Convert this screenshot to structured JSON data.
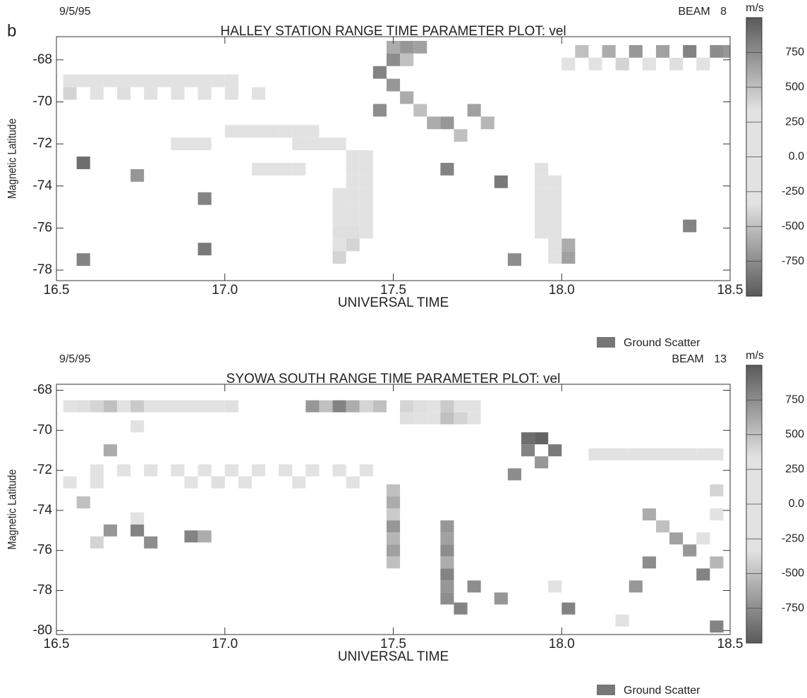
{
  "chart_data": [
    {
      "type": "heatmap",
      "panel_label": "b",
      "date": "9/5/95",
      "beam": "BEAM 8",
      "title": "HALLEY STATION RANGE TIME PARAMETER PLOT: vel",
      "xlabel": "UNIVERSAL TIME",
      "ylabel": "Magnetic Latitude",
      "colorbar_label": "m/s",
      "xlim": [
        16.5,
        18.5
      ],
      "xticks": [
        16.5,
        {
          "value": 17,
          "label": "17.0"
        },
        17.5,
        {
          "value": 18,
          "label": "18.0"
        },
        18.5
      ],
      "ylim": [
        -78.5,
        -66.9
      ],
      "yticks": [
        -78,
        -76,
        -74,
        -72,
        -70,
        -68
      ],
      "clim": [
        -1000,
        1000
      ],
      "cticks": [
        -750,
        -500,
        -250,
        {
          "value": 0,
          "label": "0.0"
        },
        250,
        500,
        750
      ],
      "colorscale": [
        "#5a5a5a",
        "#e2e2e2",
        "#e2e2e2",
        "#5a5a5a"
      ],
      "cell_width": 0.04,
      "cell_height": 0.6,
      "legend": {
        "label": "Ground Scatter",
        "color": "#777777"
      },
      "cells": {
        "x": [
          16.52,
          16.56,
          16.6,
          16.64,
          16.68,
          16.72,
          16.76,
          16.8,
          16.84,
          16.88,
          16.92,
          16.96,
          17.0,
          16.52,
          16.6,
          16.68,
          16.76,
          16.84,
          16.92,
          17.0,
          17.08,
          17.0,
          17.04,
          17.08,
          17.12,
          17.16,
          17.2,
          17.24,
          16.84,
          16.88,
          16.92,
          17.2,
          17.24,
          17.28,
          17.32,
          17.08,
          17.12,
          17.16,
          17.2,
          17.36,
          17.36,
          17.36,
          17.36,
          17.36,
          17.36,
          17.36,
          17.36,
          17.4,
          17.4,
          17.4,
          17.4,
          17.4,
          17.4,
          17.4,
          17.32,
          17.32,
          17.32,
          17.32,
          17.32,
          17.32,
          17.48,
          17.52,
          17.56,
          17.48,
          17.52,
          17.44,
          17.48,
          17.52,
          17.44,
          17.56,
          17.6,
          17.64,
          17.68,
          17.72,
          17.76,
          17.92,
          17.92,
          17.92,
          17.92,
          17.92,
          17.92,
          17.96,
          17.96,
          17.96,
          17.96,
          17.96,
          17.96,
          17.96,
          18.0,
          18.0,
          18.04,
          18.12,
          18.2,
          18.28,
          18.36,
          18.44,
          18.48,
          18.0,
          18.08,
          18.16,
          18.24,
          18.32,
          18.4,
          16.56,
          16.56,
          16.92,
          16.92,
          18.36,
          17.84,
          17.64,
          17.8,
          16.72
        ],
        "y": [
          -69,
          -69,
          -69,
          -69,
          -69,
          -69,
          -69,
          -69,
          -69,
          -69,
          -69,
          -69,
          -69,
          -69.6,
          -69.6,
          -69.6,
          -69.6,
          -69.6,
          -69.6,
          -69.6,
          -69.6,
          -71.4,
          -71.4,
          -71.4,
          -71.4,
          -71.4,
          -71.4,
          -71.4,
          -72,
          -72,
          -72,
          -72,
          -72,
          -72,
          -72,
          -73.2,
          -73.2,
          -73.2,
          -73.2,
          -72.6,
          -73.2,
          -73.8,
          -74.4,
          -75,
          -75.6,
          -76.2,
          -76.8,
          -72.6,
          -73.2,
          -73.8,
          -74.4,
          -75,
          -75.6,
          -76.2,
          -74.4,
          -75,
          -75.6,
          -76.2,
          -76.8,
          -77.4,
          -67.4,
          -67.4,
          -67.4,
          -68,
          -68,
          -68.6,
          -69.2,
          -69.8,
          -70.4,
          -70.4,
          -71,
          -71,
          -71.6,
          -70.4,
          -71,
          -73.2,
          -73.8,
          -74.4,
          -75,
          -75.6,
          -76.2,
          -73.8,
          -74.4,
          -75,
          -75.6,
          -76.2,
          -76.8,
          -77.4,
          -77.4,
          -76.8,
          -67.6,
          -67.6,
          -67.6,
          -67.6,
          -67.6,
          -67.6,
          -67.6,
          -68.2,
          -68.2,
          -68.2,
          -68.2,
          -68.2,
          -68.2,
          -72.9,
          -77.5,
          -74.6,
          -77,
          -75.9,
          -77.5,
          -73.2,
          -73.8,
          -73.5
        ],
        "values": [
          -300,
          -200,
          -150,
          -250,
          -100,
          -300,
          -200,
          -150,
          -100,
          -50,
          -150,
          -200,
          -100,
          -400,
          -100,
          -350,
          -200,
          -150,
          -300,
          -100,
          -200,
          -250,
          -200,
          -300,
          -150,
          -100,
          -200,
          -250,
          -150,
          -100,
          -200,
          -300,
          -150,
          -250,
          -200,
          -100,
          -150,
          -50,
          -200,
          -300,
          -200,
          -150,
          -250,
          -300,
          -200,
          -350,
          -400,
          -200,
          -150,
          -300,
          -100,
          -250,
          -150,
          -300,
          -250,
          -200,
          -300,
          -350,
          -250,
          -400,
          -600,
          700,
          -650,
          750,
          -500,
          800,
          -700,
          600,
          -750,
          500,
          -600,
          700,
          -500,
          650,
          -550,
          -100,
          -50,
          -100,
          -150,
          -50,
          -100,
          -100,
          -150,
          -50,
          -100,
          -150,
          -250,
          -300,
          -650,
          -600,
          500,
          -600,
          700,
          650,
          800,
          750,
          -700,
          -300,
          -250,
          -400,
          -200,
          -350,
          -300,
          900,
          -800,
          800,
          -850,
          -800,
          -750,
          800,
          -850,
          700
        ]
      }
    },
    {
      "type": "heatmap",
      "date": "9/5/95",
      "beam": "BEAM 13",
      "title": "SYOWA SOUTH RANGE TIME PARAMETER PLOT: vel",
      "xlabel": "UNIVERSAL TIME",
      "ylabel": "Magnetic Latitude",
      "colorbar_label": "m/s",
      "xlim": [
        16.5,
        18.5
      ],
      "xticks": [
        16.5,
        {
          "value": 17,
          "label": "17.0"
        },
        17.5,
        {
          "value": 18,
          "label": "18.0"
        },
        18.5
      ],
      "ylim": [
        -80.2,
        -67.7
      ],
      "yticks": [
        -80,
        -78,
        -76,
        -74,
        -72,
        -70,
        -68
      ],
      "clim": [
        -1000,
        1000
      ],
      "cticks": [
        -750,
        -500,
        -250,
        {
          "value": 0,
          "label": "0.0"
        },
        250,
        500,
        750
      ],
      "colorscale": [
        "#5a5a5a",
        "#e2e2e2",
        "#e2e2e2",
        "#5a5a5a"
      ],
      "cell_width": 0.04,
      "cell_height": 0.6,
      "legend": {
        "label": "Ground Scatter",
        "color": "#777777"
      },
      "cells": {
        "x": [
          16.52,
          16.56,
          16.6,
          16.64,
          16.68,
          16.72,
          16.76,
          16.8,
          16.84,
          16.88,
          16.92,
          16.96,
          17.0,
          17.24,
          17.28,
          17.32,
          17.36,
          17.4,
          17.44,
          17.52,
          17.56,
          17.6,
          17.64,
          17.68,
          17.72,
          17.52,
          17.56,
          17.6,
          17.64,
          17.68,
          17.72,
          17.88,
          17.92,
          17.96,
          17.88,
          17.92,
          17.84,
          18.08,
          18.12,
          18.16,
          18.2,
          18.24,
          18.28,
          18.32,
          18.36,
          18.4,
          18.44,
          16.6,
          16.68,
          16.76,
          16.84,
          16.92,
          17.0,
          17.08,
          17.16,
          17.24,
          17.32,
          17.4,
          16.52,
          16.6,
          16.88,
          16.96,
          17.04,
          17.2,
          17.36,
          17.48,
          17.48,
          17.48,
          17.48,
          17.48,
          17.48,
          17.48,
          17.64,
          17.64,
          17.64,
          17.64,
          17.64,
          17.64,
          17.64,
          17.68,
          17.72,
          17.8,
          18.24,
          18.28,
          18.32,
          18.36,
          18.24,
          18.4,
          18.44,
          18.2,
          18.4,
          18.44,
          18.44,
          16.64,
          16.72,
          16.76,
          16.6,
          16.88,
          16.92,
          16.72,
          16.64,
          16.56,
          16.72,
          18.16,
          18.0,
          18.44,
          17.96
        ],
        "y": [
          -68.8,
          -68.8,
          -68.8,
          -68.8,
          -68.8,
          -68.8,
          -68.8,
          -68.8,
          -68.8,
          -68.8,
          -68.8,
          -68.8,
          -68.8,
          -68.8,
          -68.8,
          -68.8,
          -68.8,
          -68.8,
          -68.8,
          -68.8,
          -68.8,
          -68.8,
          -68.8,
          -68.8,
          -68.8,
          -69.4,
          -69.4,
          -69.4,
          -69.4,
          -69.4,
          -69.4,
          -70.4,
          -70.4,
          -71,
          -71,
          -71.6,
          -72.2,
          -71.2,
          -71.2,
          -71.2,
          -71.2,
          -71.2,
          -71.2,
          -71.2,
          -71.2,
          -71.2,
          -71.2,
          -72,
          -72,
          -72,
          -72,
          -72,
          -72,
          -72,
          -72,
          -72,
          -72,
          -72,
          -72.6,
          -72.6,
          -72.6,
          -72.6,
          -72.6,
          -72.6,
          -72.6,
          -73,
          -73.6,
          -74.2,
          -74.8,
          -75.4,
          -76,
          -76.6,
          -74.8,
          -75.4,
          -76,
          -76.6,
          -77.2,
          -77.8,
          -78.4,
          -78.9,
          -77.8,
          -78.4,
          -74.2,
          -74.8,
          -75.4,
          -76,
          -76.6,
          -77.2,
          -76.6,
          -77.8,
          -75.4,
          -74.2,
          -73,
          -75,
          -75,
          -75.6,
          -75.6,
          -75.3,
          -75.3,
          -69.8,
          -71,
          -73.6,
          -74.4,
          -79.5,
          -78.9,
          -79.8,
          -77.8
        ],
        "values": [
          -300,
          -350,
          -400,
          -500,
          -300,
          -450,
          -250,
          -200,
          -150,
          -300,
          -250,
          -200,
          -350,
          -700,
          -500,
          800,
          -600,
          -400,
          -500,
          -400,
          -350,
          -300,
          -450,
          -200,
          -300,
          -350,
          -300,
          -250,
          -500,
          -400,
          -200,
          900,
          950,
          850,
          800,
          700,
          750,
          -100,
          -150,
          -50,
          -100,
          -150,
          -100,
          -50,
          -100,
          -150,
          -100,
          -200,
          -150,
          -250,
          -100,
          -300,
          -200,
          -150,
          -250,
          -100,
          -200,
          -150,
          -300,
          -250,
          -150,
          -350,
          -200,
          -100,
          -250,
          -500,
          -600,
          -450,
          -700,
          -550,
          -650,
          -500,
          -700,
          -650,
          -750,
          -600,
          -800,
          -700,
          -750,
          -800,
          -750,
          -700,
          -600,
          -500,
          -650,
          -700,
          -750,
          -800,
          -550,
          -700,
          -300,
          -200,
          -400,
          -700,
          -800,
          -750,
          -400,
          -800,
          -600,
          -200,
          -600,
          -500,
          -200,
          -300,
          -800,
          -800,
          -100
        ]
      }
    }
  ]
}
